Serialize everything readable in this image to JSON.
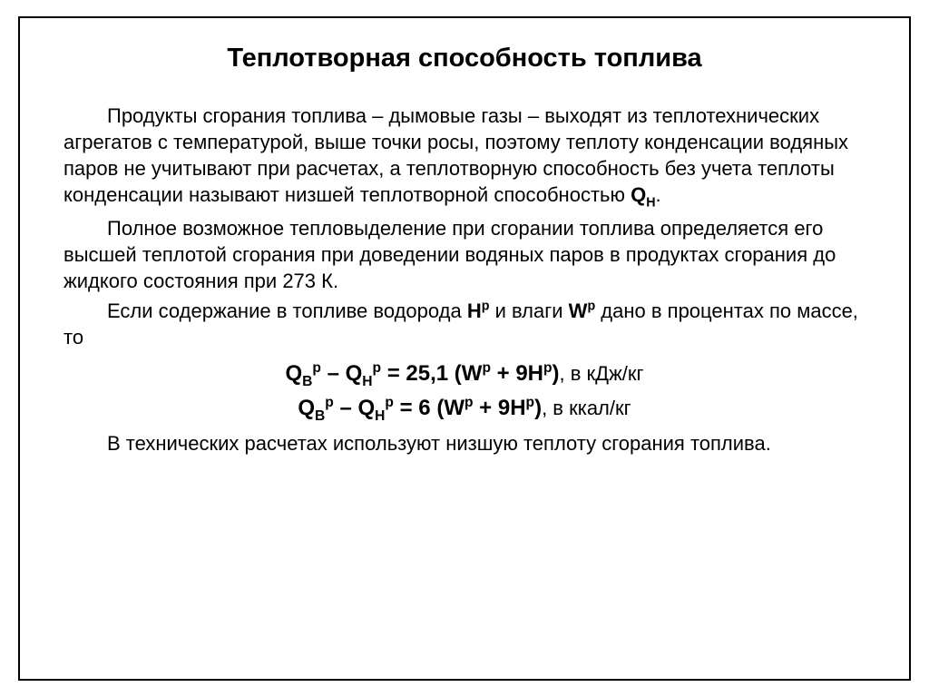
{
  "title": "Теплотворная способность топлива",
  "para1_a": "Продукты сгорания топлива – дымовые газы – выходят из теплотехнических агрегатов с температурой, выше точки росы, поэтому теплоту конденсации водяных паров не учитывают при расчетах, а теплотворную способность без учета теплоты конденсации называют низшей теплотворной способностью ",
  "para1_q": "Q",
  "para1_sub": "Н",
  "para1_end": ".",
  "para2": "Полное возможное тепловыделение при сгорании топлива определяется его высшей теплотой сгорания при доведении водяных паров в продуктах сгорания до жидкого состояния при 273 К.",
  "para3_a": "Если содержание в топливе водорода ",
  "para3_h": "Н",
  "para3_sup1": "р",
  "para3_b": " и влаги ",
  "para3_w": "W",
  "para3_sup2": "р",
  "para3_c": " дано в процентах по массе, то",
  "formula1": {
    "q1": "Q",
    "sub1": "В",
    "sup1": "р",
    "minus": " – ",
    "q2": "Q",
    "sub2": "Н",
    "sup2": "р",
    "eq": " = 25,1 (W",
    "sup3": "р",
    "plus": " + 9H",
    "sup4": "р",
    "close": ")",
    "unit": ", в кДж/кг"
  },
  "formula2": {
    "q1": "Q",
    "sub1": "В",
    "sup1": "р",
    "minus": " – ",
    "q2": "Q",
    "sub2": "Н",
    "sup2": "р",
    "eq": " = 6 (W",
    "sup3": "р",
    "plus": " + 9H",
    "sup4": "р",
    "close": ")",
    "unit": ", в ккал/кг"
  },
  "para4": "В технических расчетах используют низшую теплоту сгорания топлива."
}
